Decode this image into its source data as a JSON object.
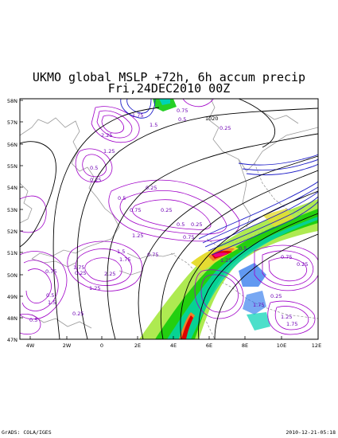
{
  "title": {
    "line1": "UKMO global MSLP +72h, 6h accum precip",
    "line2": "Fri,24DEC2010 00Z"
  },
  "map": {
    "lat_labels": [
      "58N",
      "57N",
      "56N",
      "55N",
      "54N",
      "53N",
      "52N",
      "51N",
      "50N",
      "49N",
      "48N",
      "47N"
    ],
    "lon_labels": [
      "4W",
      "2W",
      "0",
      "2E",
      "4E",
      "6E",
      "8E",
      "10E",
      "12E"
    ],
    "isobar_labels": [
      "1020"
    ],
    "precip_labels": [
      "0.75",
      "1.75",
      "1.5",
      "0.5",
      "0.25",
      "2.25",
      "1.25",
      "0.5",
      "0.25",
      "0.25",
      "0.5",
      "0.75",
      "0.25",
      "0.5",
      "0.25",
      "1.25",
      "0.75",
      "1.25",
      "0.5",
      "0.75",
      "1.5",
      "1.75",
      "2.25",
      "0.25",
      "0.75",
      "1.75",
      "1.25",
      "0.5",
      "1.5",
      "1.75",
      "0.25",
      "0.25",
      "0.75",
      "0.5",
      "0.25",
      "1.25",
      "1.75"
    ],
    "colors": {
      "isobar": "#000000",
      "precip_low": "#a000c8",
      "precip_mid": "#6e00dc",
      "coast": "#999999",
      "shade_light_green": "#a0e632",
      "shade_green": "#00c800",
      "shade_cyan": "#00d2b4",
      "shade_blue": "#1e6eeb",
      "shade_yellow": "#e6dc32",
      "shade_orange": "#f08228",
      "shade_red": "#dc0000",
      "shade_magenta": "#f00082"
    }
  },
  "footer": {
    "left": "GrADS: COLA/IGES",
    "right": "2010-12-21-05:18"
  }
}
